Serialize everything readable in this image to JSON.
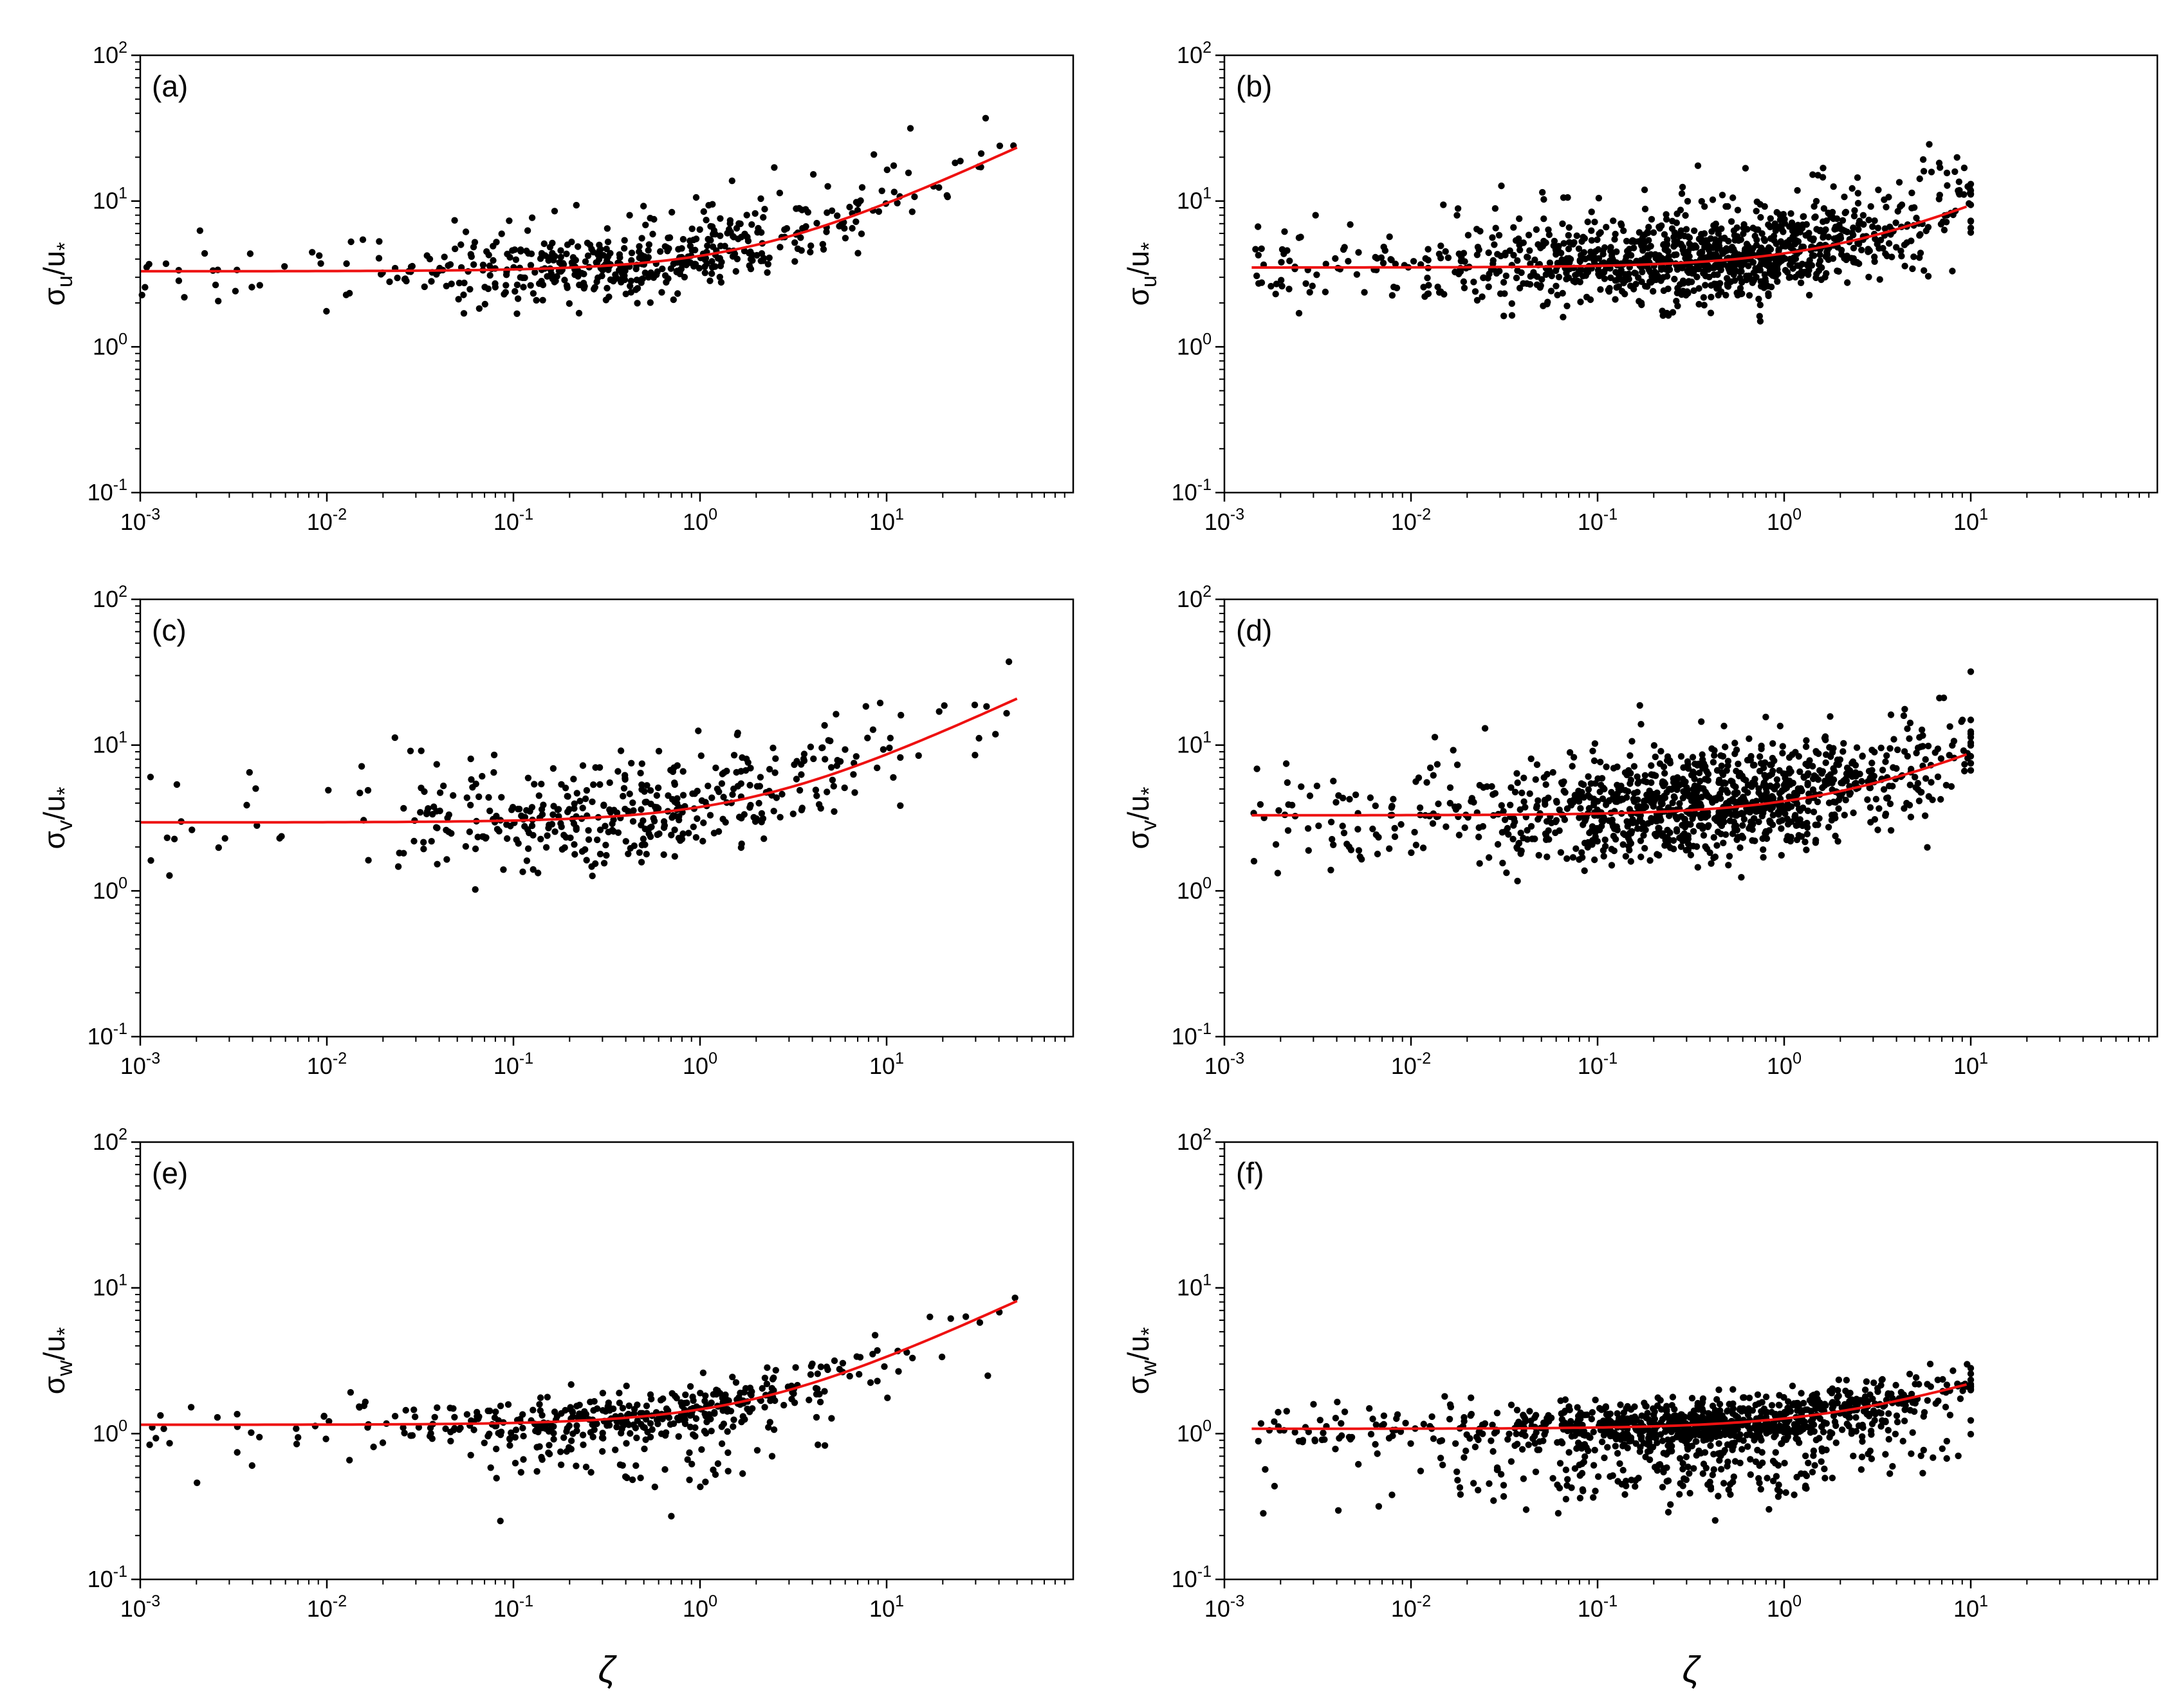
{
  "colors": {
    "points": "#000000",
    "fit": "#ee1111",
    "axes": "#000000",
    "background": "#ffffff"
  },
  "chart_data": [
    {
      "type": "scatter",
      "panel": "(a)",
      "ylabel_symbol": "σ",
      "ylabel_sub": "u",
      "ylabel_slash": "/u",
      "ylabel_star": "*",
      "xlabel": "",
      "xlim": [
        0.001,
        100
      ],
      "ylim": [
        0.1,
        100
      ],
      "x_major_exponents": [
        -3,
        -2,
        -1,
        0,
        1
      ],
      "y_major_exponents": [
        -1,
        0,
        1,
        2
      ],
      "tick_base": "10",
      "fit": {
        "a": 3.3,
        "b": 0.5,
        "c": 0.6,
        "xmin": 0.001,
        "xmax": 50
      },
      "n_points": 520,
      "x_log_range": [
        -3,
        1.7
      ],
      "x_log_center": -0.35,
      "x_log_spread": 0.6,
      "scatter_log": 0.12,
      "seed": 11
    },
    {
      "type": "scatter",
      "panel": "(b)",
      "ylabel_symbol": "σ",
      "ylabel_sub": "u",
      "ylabel_slash": "/u",
      "ylabel_star": "*",
      "xlabel": "",
      "xlim": [
        0.001,
        100
      ],
      "ylim": [
        0.1,
        100
      ],
      "x_major_exponents": [
        -3,
        -2,
        -1,
        0,
        1
      ],
      "y_major_exponents": [
        -1,
        0,
        1,
        2
      ],
      "tick_base": "10",
      "fit": {
        "a": 3.5,
        "b": 0.5,
        "c": 0.55,
        "xmin": 0.0014,
        "xmax": 9.5
      },
      "n_points": 1150,
      "x_log_range": [
        -2.85,
        1
      ],
      "x_log_center": -0.4,
      "x_log_spread": 0.6,
      "scatter_log": 0.14,
      "seed": 23
    },
    {
      "type": "scatter",
      "panel": "(c)",
      "ylabel_symbol": "σ",
      "ylabel_sub": "v",
      "ylabel_slash": "/u",
      "ylabel_star": "*",
      "xlabel": "",
      "xlim": [
        0.001,
        100
      ],
      "ylim": [
        0.1,
        100
      ],
      "x_major_exponents": [
        -3,
        -2,
        -1,
        0,
        1
      ],
      "y_major_exponents": [
        -1,
        0,
        1,
        2
      ],
      "tick_base": "10",
      "fit": {
        "a": 2.95,
        "b": 0.5,
        "c": 0.6,
        "xmin": 0.001,
        "xmax": 50
      },
      "n_points": 430,
      "x_log_range": [
        -3,
        1.7
      ],
      "x_log_center": -0.35,
      "x_log_spread": 0.6,
      "scatter_log": 0.16,
      "seed": 37
    },
    {
      "type": "scatter",
      "panel": "(d)",
      "ylabel_symbol": "σ",
      "ylabel_sub": "v",
      "ylabel_slash": "/u",
      "ylabel_star": "*",
      "xlabel": "",
      "xlim": [
        0.001,
        100
      ],
      "ylim": [
        0.1,
        100
      ],
      "x_major_exponents": [
        -3,
        -2,
        -1,
        0,
        1
      ],
      "y_major_exponents": [
        -1,
        0,
        1,
        2
      ],
      "tick_base": "10",
      "fit": {
        "a": 3.3,
        "b": 0.5,
        "c": 0.55,
        "xmin": 0.0014,
        "xmax": 9.5
      },
      "n_points": 1150,
      "x_log_range": [
        -2.85,
        1
      ],
      "x_log_center": -0.4,
      "x_log_spread": 0.6,
      "scatter_log": 0.17,
      "seed": 41
    },
    {
      "type": "scatter",
      "panel": "(e)",
      "ylabel_symbol": "σ",
      "ylabel_sub": "w",
      "ylabel_slash": "/u",
      "ylabel_star": "*",
      "xlabel": "ζ",
      "xlim": [
        0.001,
        100
      ],
      "ylim": [
        0.1,
        100
      ],
      "x_major_exponents": [
        -3,
        -2,
        -1,
        0,
        1
      ],
      "y_major_exponents": [
        -1,
        0,
        1,
        2
      ],
      "tick_base": "10",
      "fit": {
        "a": 1.15,
        "b": 0.5,
        "c": 0.6,
        "xmin": 0.001,
        "xmax": 50
      },
      "n_points": 480,
      "x_log_range": [
        -3,
        1.7
      ],
      "x_log_center": -0.35,
      "x_log_spread": 0.6,
      "scatter_log": 0.09,
      "low_tail": true,
      "seed": 53
    },
    {
      "type": "scatter",
      "panel": "(f)",
      "ylabel_symbol": "σ",
      "ylabel_sub": "w",
      "ylabel_slash": "/u",
      "ylabel_star": "*",
      "xlabel": "ζ",
      "xlim": [
        0.001,
        100
      ],
      "ylim": [
        0.1,
        100
      ],
      "x_major_exponents": [
        -3,
        -2,
        -1,
        0,
        1
      ],
      "y_major_exponents": [
        -1,
        0,
        1,
        2
      ],
      "tick_base": "10",
      "fit": {
        "a": 1.08,
        "b": 0.5,
        "c": 0.4,
        "xmin": 0.0014,
        "xmax": 9.5
      },
      "n_points": 1150,
      "x_log_range": [
        -2.85,
        1
      ],
      "x_log_center": -0.4,
      "x_log_spread": 0.6,
      "scatter_log": 0.08,
      "low_tail": true,
      "seed": 67
    }
  ]
}
